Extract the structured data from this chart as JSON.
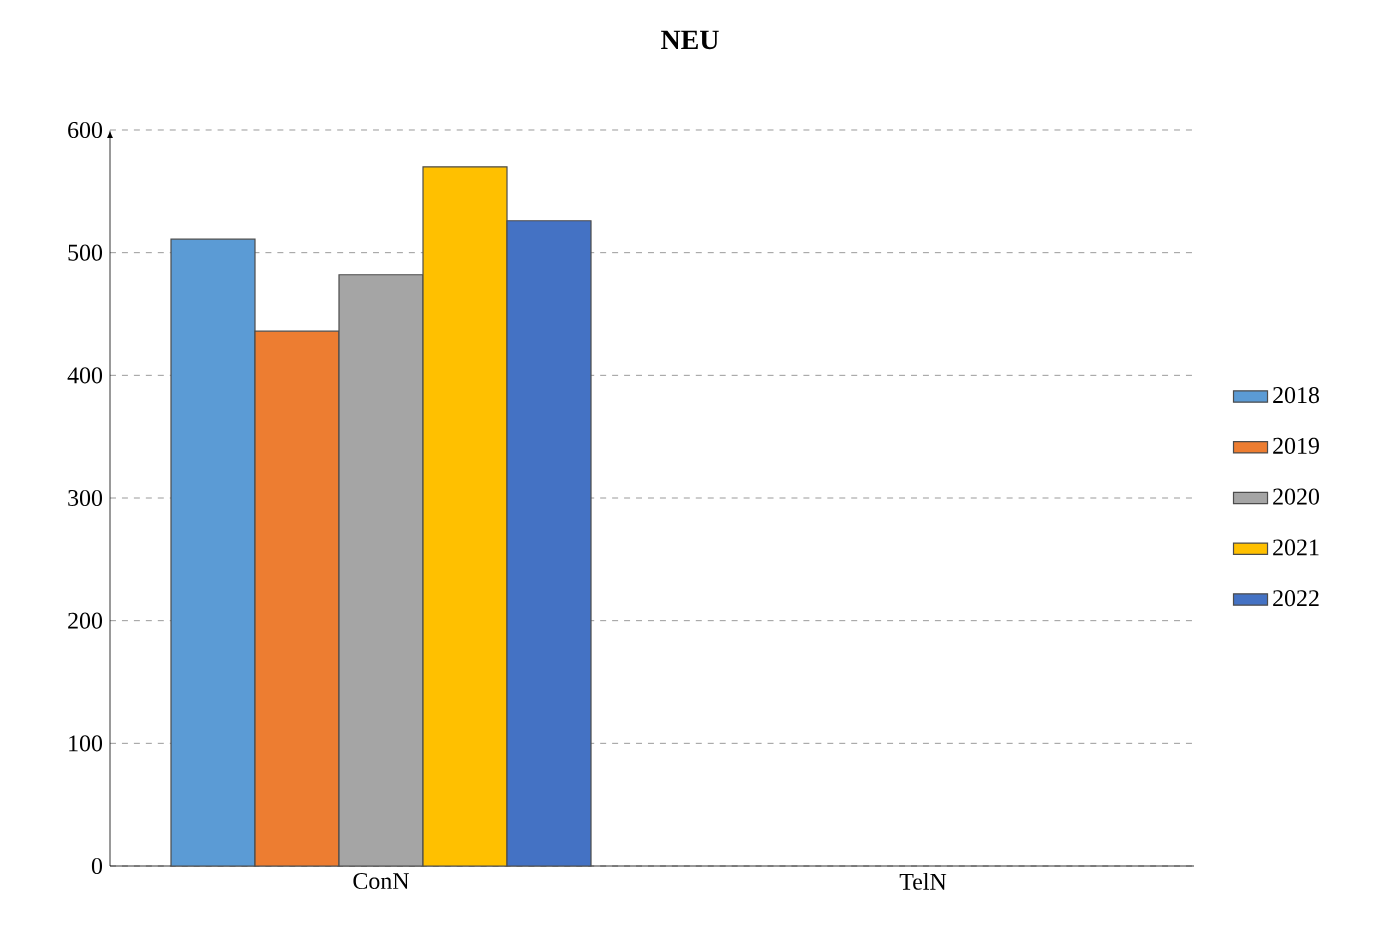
{
  "chart_data": {
    "type": "bar",
    "title": "NEU",
    "categories": [
      "ConN",
      "TelN"
    ],
    "series": [
      {
        "name": "2018",
        "color": "#5b9bd5",
        "values": [
          511,
          null
        ]
      },
      {
        "name": "2019",
        "color": "#ed7d31",
        "values": [
          436,
          null
        ]
      },
      {
        "name": "2020",
        "color": "#a5a5a5",
        "values": [
          482,
          null
        ]
      },
      {
        "name": "2021",
        "color": "#ffc000",
        "values": [
          570,
          null
        ]
      },
      {
        "name": "2022",
        "color": "#4472c4",
        "values": [
          526,
          null
        ]
      }
    ],
    "ylim": [
      0,
      600
    ],
    "yticks": [
      0,
      100,
      200,
      300,
      400,
      500,
      600
    ],
    "grid": "y",
    "legend": "right"
  }
}
